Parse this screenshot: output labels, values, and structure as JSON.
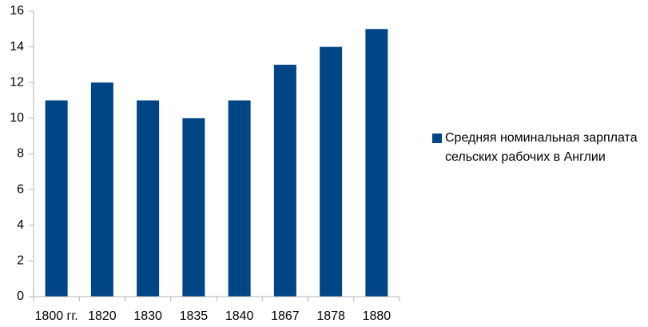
{
  "chart_data": {
    "type": "bar",
    "categories": [
      "1800 гг.",
      "1820",
      "1830",
      "1835",
      "1840",
      "1867",
      "1878",
      "1880"
    ],
    "series": [
      {
        "name": "Средняя номинальная зарплата сельских рабочих в Англии",
        "color": "#004586",
        "values": [
          11,
          12,
          11,
          10,
          11,
          13,
          14,
          15
        ]
      }
    ],
    "ylim": [
      0,
      16
    ],
    "yticks": [
      0,
      2,
      4,
      6,
      8,
      10,
      12,
      14,
      16
    ],
    "grid": false,
    "legend": "right"
  }
}
